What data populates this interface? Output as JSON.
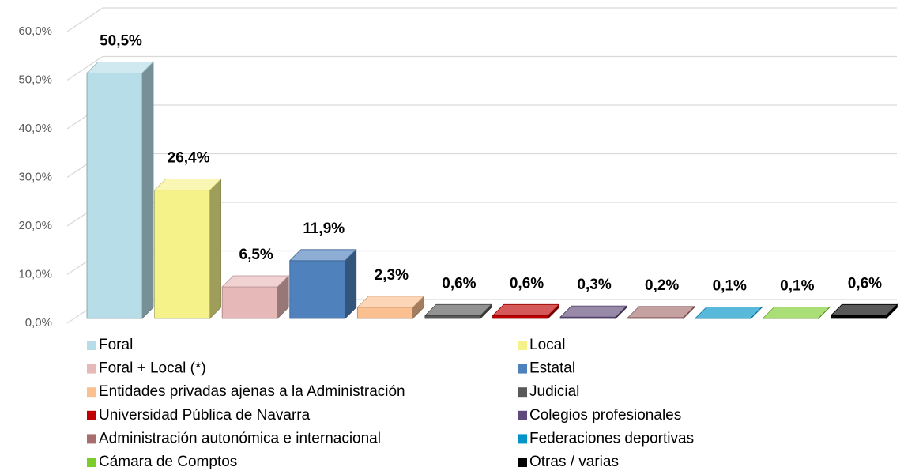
{
  "chart_data": {
    "type": "bar",
    "categories": [
      "Foral",
      "Local",
      "Foral + Local (*)",
      "Estatal",
      "Entidades privadas ajenas a la Administración",
      "Judicial",
      "Universidad Pública de Navarra",
      "Colegios profesionales",
      "Administración autonómica e internacional",
      "Federaciones deportivas",
      "Cámara de Comptos",
      "Otras / varias"
    ],
    "values": [
      50.5,
      26.4,
      6.5,
      11.9,
      2.3,
      0.6,
      0.6,
      0.3,
      0.2,
      0.1,
      0.1,
      0.6
    ],
    "value_labels": [
      "50,5%",
      "26,4%",
      "6,5%",
      "11,9%",
      "2,3%",
      "0,6%",
      "0,6%",
      "0,3%",
      "0,2%",
      "0,1%",
      "0,1%",
      "0,6%"
    ],
    "colors": [
      "#b7dde8",
      "#f5f28a",
      "#e6b9b8",
      "#4f81bd",
      "#fac090",
      "#595959",
      "#c00000",
      "#604a7b",
      "#a86e6e",
      "#0094c8",
      "#7ccc2c",
      "#000000"
    ],
    "ylim": [
      0,
      60
    ],
    "yticks": [
      {
        "value": 0,
        "label": "0,0%"
      },
      {
        "value": 10,
        "label": "10,0%"
      },
      {
        "value": 20,
        "label": "20,0%"
      },
      {
        "value": 30,
        "label": "30,0%"
      },
      {
        "value": 40,
        "label": "40,0%"
      },
      {
        "value": 50,
        "label": "50,0%"
      },
      {
        "value": 60,
        "label": "60,0%"
      }
    ],
    "grid": true,
    "legend": "bottom"
  }
}
